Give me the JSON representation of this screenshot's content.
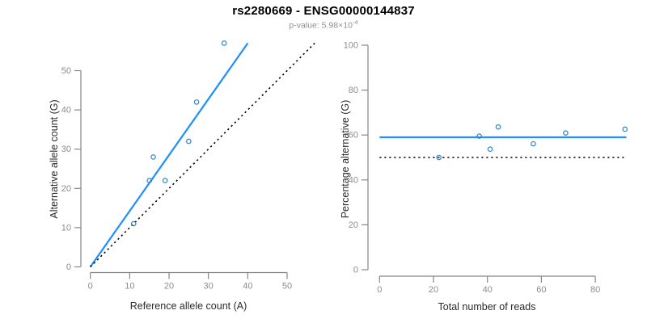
{
  "header": {
    "title": "rs2280669 - ENSG00000144837",
    "p_value_label": "p-value: 5.98×10",
    "p_value_exponent": "-4"
  },
  "colors": {
    "fit_line": "#1e8fff",
    "point_stroke": "#2e86cb",
    "dotted_line": "#000000",
    "axis_line": "#878787",
    "tick_label": "#8c8c8c",
    "axis_title": "#2b2b2b",
    "title": "#000000",
    "subtitle": "#8f8f8f"
  },
  "chart_data": [
    {
      "type": "scatter",
      "title": "",
      "xlabel": "Reference allele count (A)",
      "ylabel": "Alternative allele count (G)",
      "xticks": [
        0,
        10,
        20,
        30,
        40,
        50
      ],
      "yticks": [
        0,
        10,
        20,
        30,
        40,
        50
      ],
      "xlim": [
        0,
        57
      ],
      "ylim": [
        0,
        58
      ],
      "grid": false,
      "legend": false,
      "points": [
        [
          11,
          11
        ],
        [
          15,
          22
        ],
        [
          19,
          22
        ],
        [
          16,
          28
        ],
        [
          25,
          32
        ],
        [
          27,
          42
        ],
        [
          34,
          57
        ]
      ],
      "lines": [
        {
          "name": "regression-line",
          "style": "solid",
          "color": "#1e8fff",
          "x1": 0,
          "y1": 0,
          "x2": 40,
          "y2": 57
        },
        {
          "name": "identity-line",
          "style": "dotted",
          "color": "#000000",
          "x1": 0,
          "y1": 0,
          "x2": 57,
          "y2": 57
        }
      ]
    },
    {
      "type": "scatter",
      "title": "",
      "xlabel": "Total number of reads",
      "ylabel": "Percentage alternative (G)",
      "xticks": [
        0,
        20,
        40,
        60,
        80
      ],
      "yticks": [
        0,
        20,
        40,
        60,
        80,
        100
      ],
      "xlim": [
        0,
        91.5
      ],
      "ylim": [
        0,
        100
      ],
      "grid": false,
      "legend": false,
      "points": [
        [
          22,
          50.0
        ],
        [
          37,
          59.5
        ],
        [
          41,
          53.7
        ],
        [
          44,
          63.6
        ],
        [
          57,
          56.1
        ],
        [
          69,
          60.9
        ],
        [
          91,
          62.6
        ]
      ],
      "lines": [
        {
          "name": "mean-percentage-line",
          "style": "solid",
          "color": "#1e8fff",
          "x1": 0,
          "y1": 59,
          "x2": 91.5,
          "y2": 59
        },
        {
          "name": "fifty-percent-line",
          "style": "dotted",
          "color": "#000000",
          "x1": 0,
          "y1": 50,
          "x2": 91.5,
          "y2": 50
        }
      ]
    }
  ]
}
